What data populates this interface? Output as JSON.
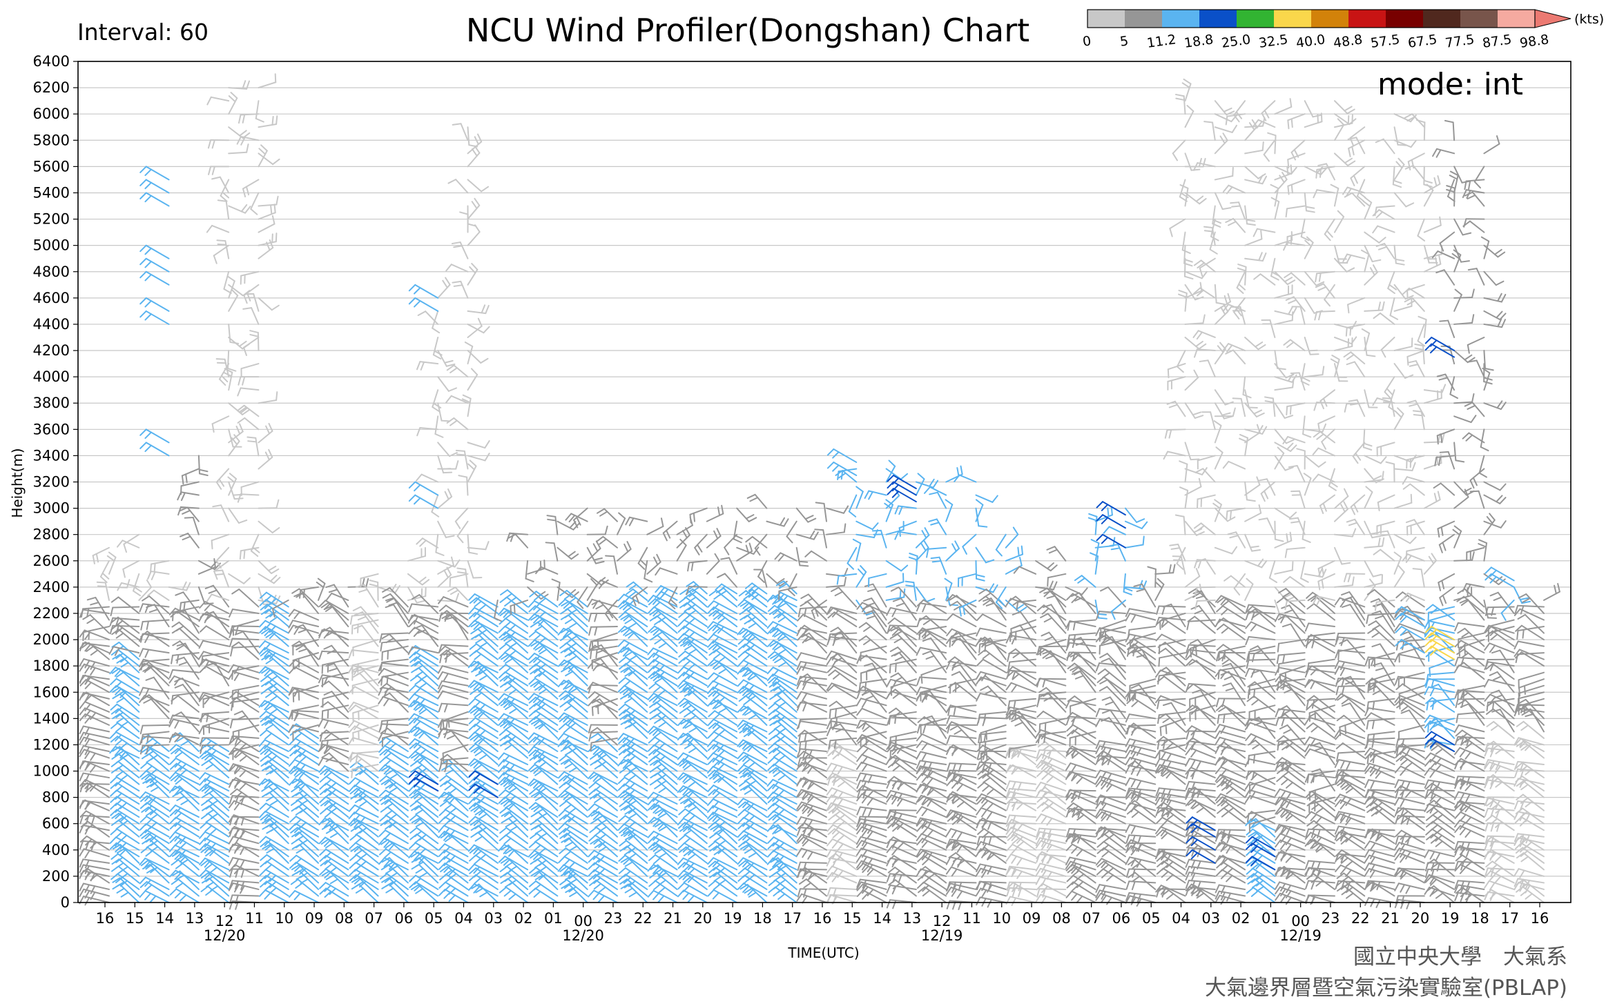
{
  "header": {
    "title": "NCU Wind Profiler(Dongshan) Chart",
    "interval": "Interval: 60",
    "mode": "mode: int"
  },
  "credits": {
    "line1": "國立中央大學　大氣系",
    "line2": "大氣邊界層暨空氣污染實驗室(PBLAP)"
  },
  "colorbar": {
    "unit": "(kts)",
    "labels": [
      "0",
      "5",
      "11.2",
      "18.8",
      "25.0",
      "32.5",
      "40.0",
      "48.8",
      "57.5",
      "67.5",
      "77.5",
      "87.5",
      "98.8"
    ],
    "colors": [
      "#c8c8c8",
      "#969696",
      "#5ab4f0",
      "#0a50c8",
      "#32b432",
      "#fad74b",
      "#d2820a",
      "#c81414",
      "#780000",
      "#50281e",
      "#78554b",
      "#f5aaa0",
      "#ec7a72"
    ]
  },
  "chart_data": {
    "type": "wind-barb time-height",
    "xlabel": "TIME(UTC)",
    "ylabel": "Height(m)",
    "ylim": [
      0,
      6400
    ],
    "yticks": [
      0,
      200,
      400,
      600,
      800,
      1000,
      1200,
      1400,
      1600,
      1800,
      2000,
      2200,
      2400,
      2600,
      2800,
      3000,
      3200,
      3400,
      3600,
      3800,
      4000,
      4200,
      4400,
      4600,
      4800,
      5000,
      5200,
      5400,
      5600,
      5800,
      6000,
      6200,
      6400
    ],
    "grid": true,
    "x_direction": "time decreasing to the right",
    "xticks": [
      "16",
      "15",
      "14",
      "13",
      "12",
      "11",
      "10",
      "09",
      "08",
      "07",
      "06",
      "05",
      "04",
      "03",
      "02",
      "01",
      "00",
      "23",
      "22",
      "21",
      "20",
      "19",
      "18",
      "17",
      "16",
      "15",
      "14",
      "13",
      "12",
      "11",
      "10",
      "09",
      "08",
      "07",
      "06",
      "05",
      "04",
      "03",
      "02",
      "01",
      "00",
      "23",
      "22",
      "21",
      "20",
      "19",
      "18",
      "17",
      "16"
    ],
    "date_labels": [
      {
        "tick": "12",
        "text": "12/20"
      },
      {
        "tick": "00",
        "text": "12/20"
      },
      {
        "tick": "12",
        "text": "12/19"
      },
      {
        "tick": "00",
        "text": "12/19"
      }
    ],
    "profiles": [
      {
        "time": "16",
        "top": 2750,
        "low": [
          "#969696",
          1900
        ],
        "mid": "#969696",
        "up": "#c8c8c8"
      },
      {
        "time": "15",
        "top": 2850,
        "low": [
          "#5ab4f0",
          1900
        ],
        "mid": "#969696",
        "up": "#c8c8c8"
      },
      {
        "time": "14",
        "top": 2650,
        "low": [
          "#5ab4f0",
          1200
        ],
        "mid": "#969696",
        "up": "#c8c8c8"
      },
      {
        "time": "13",
        "top": 3450,
        "low": [
          "#5ab4f0",
          1200
        ],
        "mid": "#969696",
        "up": "#969696"
      },
      {
        "time": "12",
        "top": 6200,
        "low": [
          "#5ab4f0",
          1200
        ],
        "mid": "#969696",
        "up": "#c8c8c8"
      },
      {
        "time": "11",
        "top": 6200,
        "low": [
          "#969696",
          1200
        ],
        "mid": "#969696",
        "up": "#c8c8c8"
      },
      {
        "time": "10",
        "top": 2350,
        "low": [
          "#5ab4f0",
          2300
        ],
        "mid": "#5ab4f0",
        "up": "#969696"
      },
      {
        "time": "09",
        "top": 2400,
        "low": [
          "#5ab4f0",
          1300
        ],
        "mid": "#969696",
        "up": "#969696"
      },
      {
        "time": "08",
        "top": 2400,
        "low": [
          "#5ab4f0",
          1000
        ],
        "mid": "#969696",
        "up": "#969696"
      },
      {
        "time": "07",
        "top": 2550,
        "low": [
          "#5ab4f0",
          1000
        ],
        "mid": "#c8c8c8",
        "up": "#c8c8c8"
      },
      {
        "time": "06",
        "top": 2650,
        "low": [
          "#5ab4f0",
          1200
        ],
        "mid": "#969696",
        "up": "#c8c8c8"
      },
      {
        "time": "05",
        "top": 4600,
        "low": [
          "#5ab4f0",
          1900
        ],
        "mid": "#969696",
        "up": "#c8c8c8"
      },
      {
        "time": "04",
        "top": 5950,
        "low": [
          "#5ab4f0",
          1000
        ],
        "mid": "#969696",
        "up": "#c8c8c8"
      },
      {
        "time": "03",
        "top": 2300,
        "low": [
          "#5ab4f0",
          2300
        ],
        "mid": "#969696",
        "up": "#969696"
      },
      {
        "time": "02",
        "top": 2850,
        "low": [
          "#5ab4f0",
          2300
        ],
        "mid": "#969696",
        "up": "#969696"
      },
      {
        "time": "01",
        "top": 2950,
        "low": [
          "#5ab4f0",
          2300
        ],
        "mid": "#969696",
        "up": "#969696"
      },
      {
        "time": "00",
        "top": 3000,
        "low": [
          "#5ab4f0",
          2300
        ],
        "mid": "#969696",
        "up": "#969696"
      },
      {
        "time": "23",
        "top": 2950,
        "low": [
          "#5ab4f0",
          1200
        ],
        "mid": "#969696",
        "up": "#969696"
      },
      {
        "time": "22",
        "top": 2950,
        "low": [
          "#5ab4f0",
          2400
        ],
        "mid": "#969696",
        "up": "#969696"
      },
      {
        "time": "21",
        "top": 2950,
        "low": [
          "#5ab4f0",
          2400
        ],
        "mid": "#969696",
        "up": "#969696"
      },
      {
        "time": "20",
        "top": 3000,
        "low": [
          "#5ab4f0",
          2400
        ],
        "mid": "#969696",
        "up": "#969696"
      },
      {
        "time": "19",
        "top": 3000,
        "low": [
          "#5ab4f0",
          2400
        ],
        "mid": "#969696",
        "up": "#969696"
      },
      {
        "time": "18",
        "top": 3000,
        "low": [
          "#5ab4f0",
          2400
        ],
        "mid": "#969696",
        "up": "#969696"
      },
      {
        "time": "17",
        "top": 3050,
        "low": [
          "#5ab4f0",
          2400
        ],
        "mid": "#969696",
        "up": "#969696"
      },
      {
        "time": "16",
        "top": 3000,
        "low": [
          "#969696",
          1200
        ],
        "mid": "#969696",
        "up": "#969696"
      },
      {
        "time": "15",
        "top": 3350,
        "low": [
          "#c8c8c8",
          1200
        ],
        "mid": "#969696",
        "up": "#5ab4f0"
      },
      {
        "time": "14",
        "top": 3350,
        "low": [
          "#969696",
          1200
        ],
        "mid": "#969696",
        "up": "#5ab4f0"
      },
      {
        "time": "13",
        "top": 3200,
        "low": [
          "#969696",
          1200
        ],
        "mid": "#969696",
        "up": "#5ab4f0"
      },
      {
        "time": "12",
        "top": 3200,
        "low": [
          "#969696",
          1200
        ],
        "mid": "#969696",
        "up": "#5ab4f0"
      },
      {
        "time": "11",
        "top": 3200,
        "low": [
          "#969696",
          1200
        ],
        "mid": "#969696",
        "up": "#5ab4f0"
      },
      {
        "time": "10",
        "top": 2800,
        "low": [
          "#969696",
          1200
        ],
        "mid": "#969696",
        "up": "#5ab4f0"
      },
      {
        "time": "09",
        "top": 2650,
        "low": [
          "#c8c8c8",
          1200
        ],
        "mid": "#969696",
        "up": "#969696"
      },
      {
        "time": "08",
        "top": 2600,
        "low": [
          "#c8c8c8",
          1200
        ],
        "mid": "#969696",
        "up": "#969696"
      },
      {
        "time": "07",
        "top": 2900,
        "low": [
          "#969696",
          1200
        ],
        "mid": "#969696",
        "up": "#5ab4f0"
      },
      {
        "time": "06",
        "top": 3000,
        "low": [
          "#969696",
          1200
        ],
        "mid": "#969696",
        "up": "#5ab4f0"
      },
      {
        "time": "05",
        "top": 2550,
        "low": [
          "#969696",
          1200
        ],
        "mid": "#969696",
        "up": "#969696"
      },
      {
        "time": "04",
        "top": 6100,
        "low": [
          "#969696",
          1200
        ],
        "mid": "#969696",
        "up": "#c8c8c8"
      },
      {
        "time": "03",
        "top": 6100,
        "low": [
          "#969696",
          1200
        ],
        "mid": "#969696",
        "up": "#c8c8c8"
      },
      {
        "time": "02",
        "top": 6100,
        "low": [
          "#969696",
          1200
        ],
        "mid": "#969696",
        "up": "#c8c8c8"
      },
      {
        "time": "01",
        "top": 6100,
        "low": [
          "#5ab4f0",
          600
        ],
        "mid": "#969696",
        "up": "#c8c8c8"
      },
      {
        "time": "00",
        "top": 6100,
        "low": [
          "#969696",
          1200
        ],
        "mid": "#969696",
        "up": "#c8c8c8"
      },
      {
        "time": "23",
        "top": 6100,
        "low": [
          "#969696",
          700
        ],
        "mid": "#969696",
        "up": "#c8c8c8"
      },
      {
        "time": "22",
        "top": 5900,
        "low": [
          "#969696",
          1100
        ],
        "mid": "#969696",
        "up": "#c8c8c8"
      },
      {
        "time": "21",
        "top": 6000,
        "low": [
          "#969696",
          1100
        ],
        "mid": "#969696",
        "up": "#c8c8c8"
      },
      {
        "time": "20",
        "top": 5900,
        "low": [
          "#969696",
          1200
        ],
        "mid": "#969696",
        "up": "#c8c8c8"
      },
      {
        "time": "19",
        "top": 5800,
        "low": [
          "#969696",
          1200
        ],
        "mid": "#5ab4f0",
        "up": "#969696"
      },
      {
        "time": "18",
        "top": 5700,
        "low": [
          "#969696",
          1300
        ],
        "mid": "#969696",
        "up": "#969696"
      },
      {
        "time": "17",
        "top": 2450,
        "low": [
          "#c8c8c8",
          1300
        ],
        "mid": "#969696",
        "up": "#5ab4f0"
      },
      {
        "time": "16",
        "top": 2300,
        "low": [
          "#c8c8c8",
          1300
        ],
        "mid": "#969696",
        "up": "#969696"
      }
    ],
    "highlights": [
      {
        "time_index": 2,
        "heights": [
          5300,
          5400,
          5500,
          4900,
          4800,
          4700,
          4500,
          4400,
          3400,
          3500
        ],
        "color": "#5ab4f0"
      },
      {
        "time_index": 11,
        "heights": [
          4600,
          4500,
          3100,
          3000
        ],
        "color": "#5ab4f0"
      },
      {
        "time_index": 11,
        "heights": [
          900,
          850
        ],
        "color": "#0a50c8"
      },
      {
        "time_index": 13,
        "heights": [
          900,
          800
        ],
        "color": "#0a50c8"
      },
      {
        "time_index": 25,
        "heights": [
          3350,
          3250
        ],
        "color": "#5ab4f0"
      },
      {
        "time_index": 27,
        "heights": [
          3150,
          3100,
          3050
        ],
        "color": "#0a50c8"
      },
      {
        "time_index": 34,
        "heights": [
          2950,
          2850,
          2700
        ],
        "color": "#0a50c8"
      },
      {
        "time_index": 37,
        "heights": [
          550,
          500,
          400,
          300
        ],
        "color": "#0a50c8"
      },
      {
        "time_index": 39,
        "heights": [
          400,
          350,
          250
        ],
        "color": "#0a50c8"
      },
      {
        "time_index": 44,
        "heights": [
          2150,
          2100,
          2000,
          1900
        ],
        "color": "#5ab4f0"
      },
      {
        "time_index": 45,
        "heights": [
          2000,
          1950,
          1900,
          1850
        ],
        "color": "#fad74b"
      },
      {
        "time_index": 45,
        "heights": [
          4200,
          4150,
          1200,
          1150
        ],
        "color": "#0a50c8"
      },
      {
        "time_index": 47,
        "heights": [
          2450,
          2400
        ],
        "color": "#5ab4f0"
      }
    ]
  }
}
